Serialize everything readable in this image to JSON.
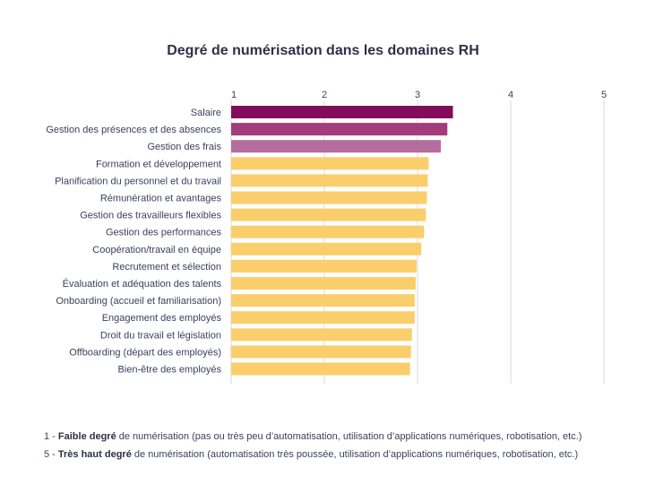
{
  "chart_data": {
    "type": "bar",
    "orientation": "horizontal",
    "title": "Degré de numérisation dans les domaines RH",
    "xlim": [
      1,
      5
    ],
    "xticks": [
      1,
      2,
      3,
      4,
      5
    ],
    "grid": true,
    "categories": [
      "Salaire",
      "Gestion des présences et des absences",
      "Gestion des frais",
      "Formation et développement",
      "Planification du personnel et du travail",
      "Rémunération et avantages",
      "Gestion des travailleurs flexibles",
      "Gestion des performances",
      "Coopération/travail en équipe",
      "Recrutement et sélection",
      "Évaluation et adéquation des talents",
      "Onboarding (accueil et familiarisation)",
      "Engagement des employés",
      "Droit du travail et législation",
      "Offboarding (départ des employés)",
      "Bien-être des employés"
    ],
    "values": [
      3.38,
      3.32,
      3.25,
      3.12,
      3.11,
      3.1,
      3.09,
      3.07,
      3.04,
      2.99,
      2.98,
      2.97,
      2.97,
      2.94,
      2.93,
      2.92
    ],
    "colors": [
      "#820c5a",
      "#a23c7b",
      "#b46d9d",
      "#fbce6c",
      "#fbce6c",
      "#fbce6c",
      "#fbce6c",
      "#fbce6c",
      "#fbce6c",
      "#fbce6c",
      "#fbce6c",
      "#fbce6c",
      "#fbce6c",
      "#fbce6c",
      "#fbce6c",
      "#fbce6c"
    ]
  },
  "footnotes": {
    "line1": {
      "prefix": "1 - ",
      "bold": "Faible degré",
      "rest": " de numérisation (pas ou très peu d’automatisation, utilisation d’applications numériques, robotisation, etc.)"
    },
    "line2": {
      "prefix": "5 - ",
      "bold": "Très haut degré",
      "rest": " de numérisation (automatisation très poussée, utilisation d’applications numériques, robotisation, etc.)"
    }
  }
}
